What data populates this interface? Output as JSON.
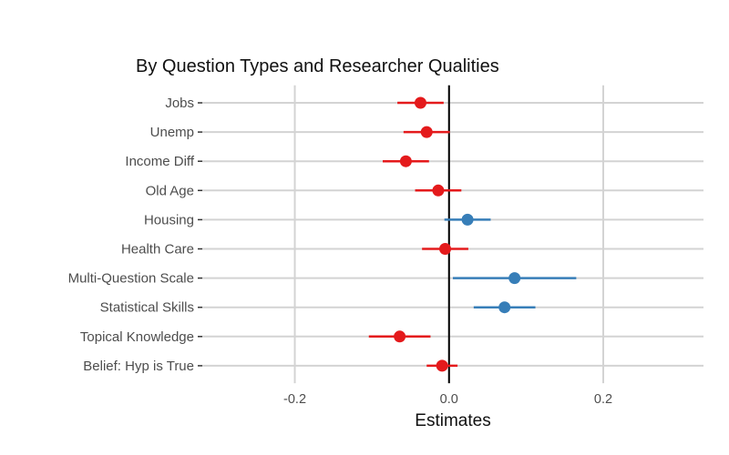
{
  "chart_data": {
    "type": "dot-and-whisker",
    "title": "By Question Types and Researcher Qualities",
    "xlabel": "Estimates",
    "ylabel": "",
    "xlim": [
      -0.32,
      0.33
    ],
    "x_ticks": [
      -0.2,
      0.0,
      0.2
    ],
    "x_tick_labels": [
      "-0.2",
      "0.0",
      "0.2"
    ],
    "grid": true,
    "reference_line": 0,
    "categories": [
      "Jobs",
      "Unemp",
      "Income Diff",
      "Old Age",
      "Housing",
      "Health Care",
      "Multi-Question Scale",
      "Statistical Skills",
      "Topical Knowledge",
      "Belief: Hyp is True"
    ],
    "points": [
      {
        "estimate": -0.037,
        "lower": -0.067,
        "upper": -0.007,
        "color": "#E41A1C"
      },
      {
        "estimate": -0.029,
        "lower": -0.059,
        "upper": 0.001,
        "color": "#E41A1C"
      },
      {
        "estimate": -0.056,
        "lower": -0.086,
        "upper": -0.026,
        "color": "#E41A1C"
      },
      {
        "estimate": -0.014,
        "lower": -0.044,
        "upper": 0.016,
        "color": "#E41A1C"
      },
      {
        "estimate": 0.024,
        "lower": -0.006,
        "upper": 0.054,
        "color": "#377EB8"
      },
      {
        "estimate": -0.005,
        "lower": -0.035,
        "upper": 0.025,
        "color": "#E41A1C"
      },
      {
        "estimate": 0.085,
        "lower": 0.005,
        "upper": 0.165,
        "color": "#377EB8"
      },
      {
        "estimate": 0.072,
        "lower": 0.032,
        "upper": 0.112,
        "color": "#377EB8"
      },
      {
        "estimate": -0.064,
        "lower": -0.104,
        "upper": -0.024,
        "color": "#E41A1C"
      },
      {
        "estimate": -0.009,
        "lower": -0.029,
        "upper": 0.011,
        "color": "#E41A1C"
      }
    ]
  },
  "colors": {
    "negative": "#E41A1C",
    "positive": "#377EB8",
    "grid": "#D3D3D3",
    "reference": "#000000"
  }
}
